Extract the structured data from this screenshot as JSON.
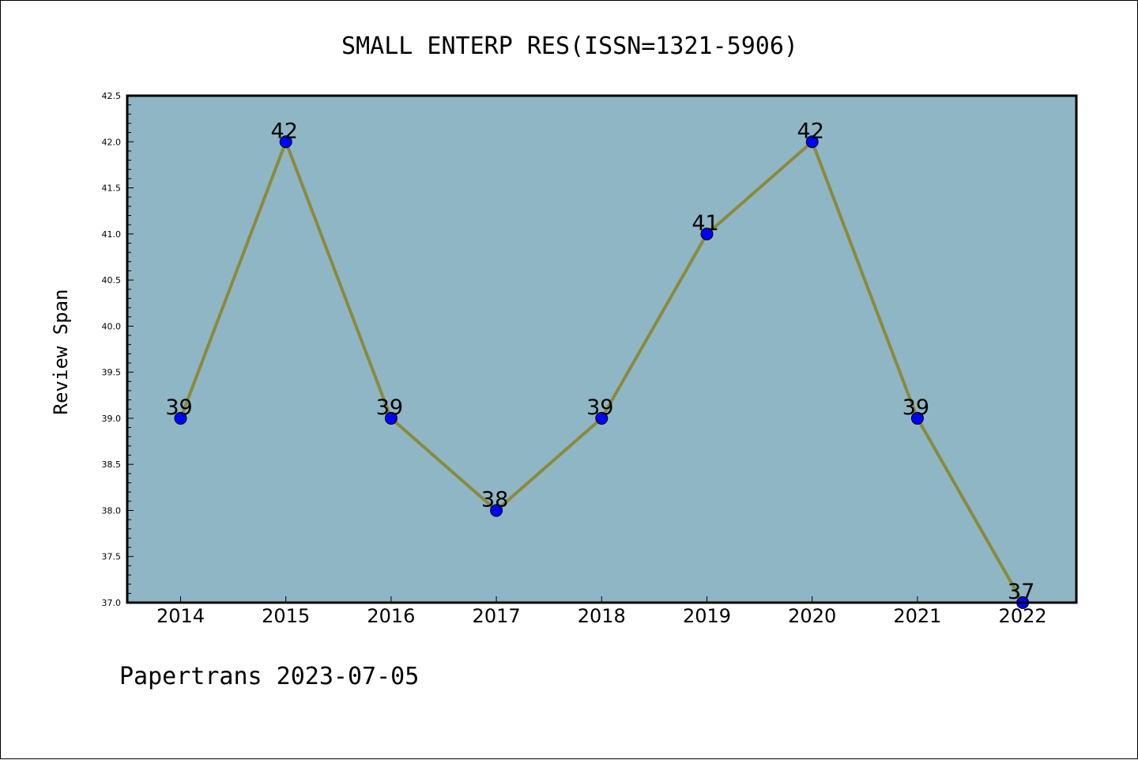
{
  "chart_data": {
    "type": "line",
    "title": "SMALL ENTERP RES(ISSN=1321-5906)",
    "xlabel": "",
    "ylabel": "Review Span",
    "categories": [
      "2014",
      "2015",
      "2016",
      "2017",
      "2018",
      "2019",
      "2020",
      "2021",
      "2022"
    ],
    "series": [
      {
        "values": [
          39,
          42,
          39,
          38,
          39,
          41,
          42,
          39,
          37
        ]
      }
    ],
    "data_labels": [
      "39",
      "42",
      "39",
      "38",
      "39",
      "41",
      "42",
      "39",
      "37"
    ],
    "ylim": [
      37.0,
      42.5
    ],
    "yticks": [
      "37.0",
      "37.5",
      "38.0",
      "38.5",
      "39.0",
      "39.5",
      "40.0",
      "40.5",
      "41.0",
      "41.5",
      "42.0",
      "42.5"
    ],
    "grid": false,
    "legend": "none",
    "colors": {
      "plot_background": "#8fb6c4",
      "line": "#8b8a3c",
      "marker": "#0000ff"
    }
  },
  "footer": {
    "caption": "Papertrans 2023-07-05"
  }
}
